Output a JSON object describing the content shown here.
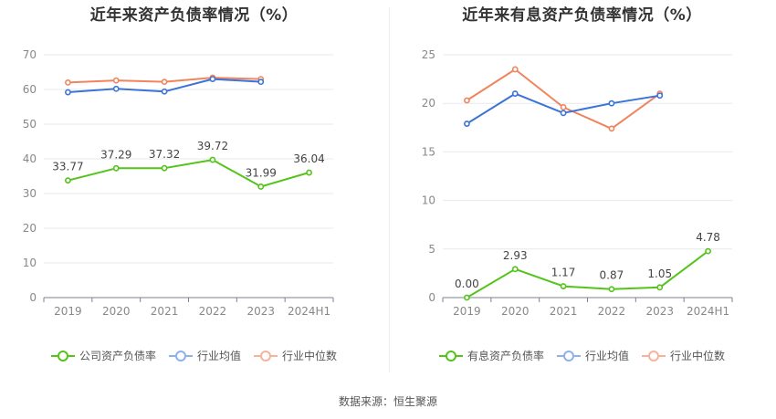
{
  "chart_data": [
    {
      "type": "line",
      "title": "近年来资产负债率情况（%）",
      "categories": [
        "2019",
        "2020",
        "2021",
        "2022",
        "2023",
        "2024H1"
      ],
      "ylim": [
        0,
        70
      ],
      "yticks": [
        0,
        10,
        20,
        30,
        40,
        50,
        60,
        70
      ],
      "grid": true,
      "legend_position": "bottom",
      "series": [
        {
          "name": "公司资产负债率",
          "color": "#52c41a",
          "values": [
            33.77,
            37.29,
            37.32,
            39.72,
            31.99,
            36.04
          ],
          "labels": [
            "33.77",
            "37.29",
            "37.32",
            "39.72",
            "31.99",
            "36.04"
          ]
        },
        {
          "name": "行业均值",
          "color": "#3b73d8",
          "legend_color": "#8fb0ea",
          "values": [
            59.2,
            60.2,
            59.4,
            63.0,
            62.2,
            null
          ]
        },
        {
          "name": "行业中位数",
          "color": "#f0845c",
          "legend_color": "#f7b39a",
          "values": [
            62.0,
            62.6,
            62.2,
            63.4,
            63.0,
            null
          ]
        }
      ]
    },
    {
      "type": "line",
      "title": "近年来有息资产负债率情况（%）",
      "categories": [
        "2019",
        "2020",
        "2021",
        "2022",
        "2023",
        "2024H1"
      ],
      "ylim": [
        0,
        25
      ],
      "yticks": [
        0,
        5,
        10,
        15,
        20,
        25
      ],
      "grid": true,
      "legend_position": "bottom",
      "series": [
        {
          "name": "有息资产负债率",
          "color": "#52c41a",
          "values": [
            0.0,
            2.93,
            1.17,
            0.87,
            1.05,
            4.78
          ],
          "labels": [
            "0.00",
            "2.93",
            "1.17",
            "0.87",
            "1.05",
            "4.78"
          ]
        },
        {
          "name": "行业均值",
          "color": "#3b73d8",
          "legend_color": "#8fb0ea",
          "values": [
            17.9,
            21.0,
            19.0,
            20.0,
            20.8,
            null
          ]
        },
        {
          "name": "行业中位数",
          "color": "#f0845c",
          "legend_color": "#f7b39a",
          "values": [
            20.3,
            23.5,
            19.6,
            17.4,
            21.0,
            null
          ]
        }
      ]
    }
  ],
  "source": "数据来源：恒生聚源"
}
